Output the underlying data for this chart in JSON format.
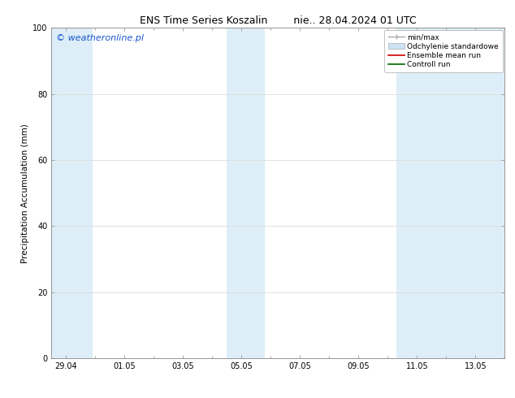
{
  "title": "ENS Time Series Koszalin",
  "title2": "nie.. 28.04.2024 01 UTC",
  "ylabel": "Precipitation Accumulation (mm)",
  "ylim": [
    0,
    100
  ],
  "yticks": [
    0,
    20,
    40,
    60,
    80,
    100
  ],
  "bg_color": "#ffffff",
  "plot_bg_color": "#ffffff",
  "watermark": "© weatheronline.pl",
  "watermark_color": "#1a56cc",
  "shaded_band_color": "#ddeef8",
  "minmax_color": "#aaaaaa",
  "std_color": "#cce3f5",
  "ensemble_mean_color": "#cc0000",
  "control_run_color": "#006600",
  "legend_labels": [
    "min/max",
    "Odchylenie standardowe",
    "Ensemble mean run",
    "Controll run"
  ],
  "x_tick_labels": [
    "29.04",
    "01.05",
    "03.05",
    "05.05",
    "07.05",
    "09.05",
    "11.05",
    "13.05"
  ],
  "x_tick_positions": [
    0,
    2,
    4,
    6,
    8,
    10,
    12,
    14
  ],
  "xlim": [
    -0.5,
    15.0
  ],
  "shaded_bands": [
    {
      "x_start": -0.5,
      "x_end": 0.9
    },
    {
      "x_start": 5.5,
      "x_end": 6.8
    },
    {
      "x_start": 11.3,
      "x_end": 15.0
    }
  ],
  "title_fontsize": 9,
  "tick_fontsize": 7,
  "ylabel_fontsize": 7.5,
  "watermark_fontsize": 8,
  "legend_fontsize": 6.5,
  "grid_color": "#dddddd",
  "spine_color": "#888888"
}
